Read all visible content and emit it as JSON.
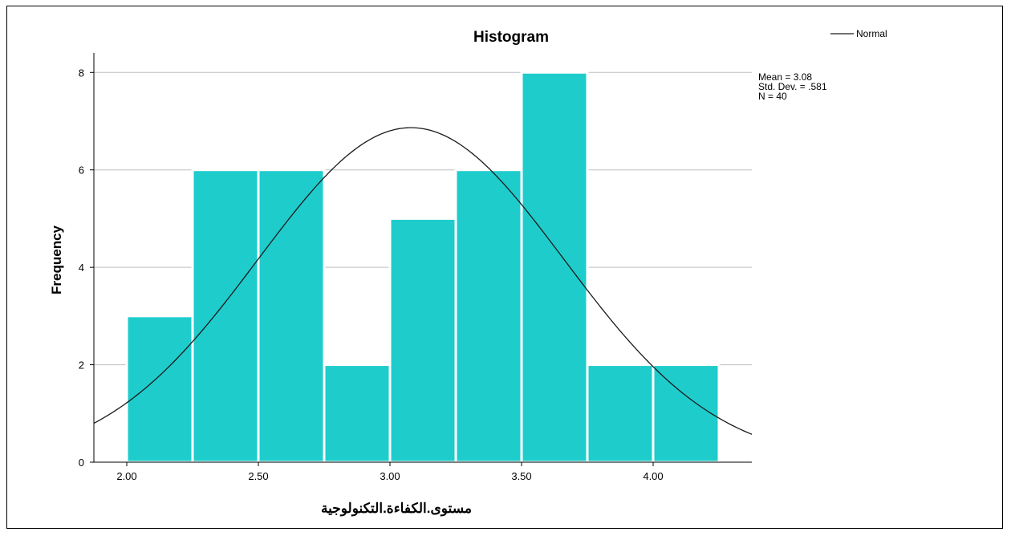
{
  "chart_data": {
    "type": "bar",
    "title": "Histogram",
    "xlabel": "مستوى.الكفاءة.التكنولوجية",
    "ylabel": "Frequency",
    "bin_width": 0.25,
    "bins": [
      {
        "start": 2.0,
        "end": 2.25,
        "count": 3
      },
      {
        "start": 2.25,
        "end": 2.5,
        "count": 6
      },
      {
        "start": 2.5,
        "end": 2.75,
        "count": 6
      },
      {
        "start": 2.75,
        "end": 3.0,
        "count": 2
      },
      {
        "start": 3.0,
        "end": 3.25,
        "count": 5
      },
      {
        "start": 3.25,
        "end": 3.5,
        "count": 6
      },
      {
        "start": 3.5,
        "end": 3.75,
        "count": 8
      },
      {
        "start": 3.75,
        "end": 4.0,
        "count": 2
      },
      {
        "start": 4.0,
        "end": 4.25,
        "count": 2
      }
    ],
    "xlim": [
      1.875,
      4.375
    ],
    "ylim": [
      0,
      8.4
    ],
    "x_ticks": [
      2.0,
      2.5,
      3.0,
      3.5,
      4.0
    ],
    "x_tick_labels": [
      "2.00",
      "2.50",
      "3.00",
      "3.50",
      "4.00"
    ],
    "y_ticks": [
      0,
      2,
      4,
      6,
      8
    ],
    "y_tick_labels": [
      "0",
      "2",
      "4",
      "6",
      "8"
    ],
    "grid": true,
    "normal_curve": {
      "mean": 3.08,
      "std": 0.581,
      "n": 40
    },
    "stats": [
      "Mean = 3.08",
      "Std. Dev. = .581",
      "N = 40"
    ],
    "legend": {
      "label": "Normal",
      "position": "top-right"
    },
    "colors": {
      "bar": "#1fcccc",
      "bar_edge": "#ffffff",
      "curve": "#1a1a1a",
      "grid": "#bfbfbf",
      "axis": "#000000"
    }
  }
}
